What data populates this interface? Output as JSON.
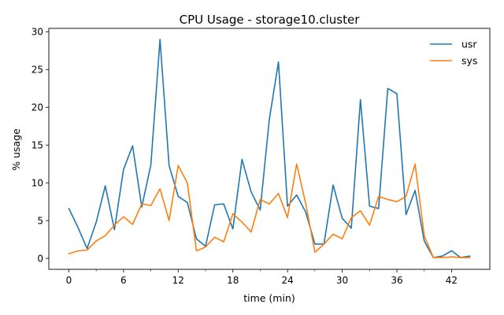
{
  "chart_data": {
    "type": "line",
    "title": "CPU Usage - storage10.cluster",
    "xlabel": "time (min)",
    "ylabel": "% usage",
    "xlim": [
      -2.2,
      46.2
    ],
    "ylim": [
      -1.45,
      30.45
    ],
    "xticks": [
      0,
      6,
      12,
      18,
      24,
      30,
      36,
      42
    ],
    "xminorticks": [
      3,
      9,
      15,
      21,
      27,
      33,
      39
    ],
    "yticks": [
      0,
      5,
      10,
      15,
      20,
      25,
      30
    ],
    "grid": false,
    "legend_position": "top-right",
    "x": [
      0,
      1,
      2,
      3,
      4,
      5,
      6,
      7,
      8,
      9,
      10,
      11,
      12,
      13,
      14,
      15,
      16,
      17,
      18,
      19,
      20,
      21,
      22,
      23,
      24,
      25,
      26,
      27,
      28,
      29,
      30,
      31,
      32,
      33,
      34,
      35,
      36,
      37,
      38,
      39,
      40,
      41,
      42,
      43,
      44
    ],
    "series": [
      {
        "name": "usr",
        "color": "#1f77b4",
        "values": [
          6.6,
          4.1,
          1.3,
          4.8,
          9.6,
          3.8,
          11.8,
          14.9,
          6.8,
          12.4,
          29.0,
          12.3,
          8.2,
          7.4,
          2.6,
          1.6,
          7.1,
          7.2,
          3.9,
          13.1,
          8.8,
          6.4,
          18.4,
          26.0,
          6.9,
          8.4,
          6.1,
          1.9,
          1.9,
          9.7,
          5.3,
          4.0,
          21.0,
          6.9,
          6.6,
          22.5,
          21.8,
          5.8,
          9.0,
          2.3,
          0.1,
          0.3,
          1.0,
          0.1,
          0.3
        ]
      },
      {
        "name": "sys",
        "color": "#ff7f0e",
        "values": [
          0.6,
          1.0,
          1.1,
          2.3,
          3.0,
          4.4,
          5.5,
          4.5,
          7.2,
          7.0,
          9.2,
          5.0,
          12.3,
          10.0,
          1.0,
          1.5,
          2.8,
          2.2,
          5.9,
          4.8,
          3.5,
          7.8,
          7.2,
          8.6,
          5.4,
          12.5,
          7.2,
          0.8,
          1.9,
          3.2,
          2.6,
          5.4,
          6.3,
          4.4,
          8.2,
          7.8,
          7.5,
          8.2,
          12.5,
          3.0,
          0.1,
          0.1,
          0.2,
          0.1,
          0.1
        ]
      }
    ]
  }
}
